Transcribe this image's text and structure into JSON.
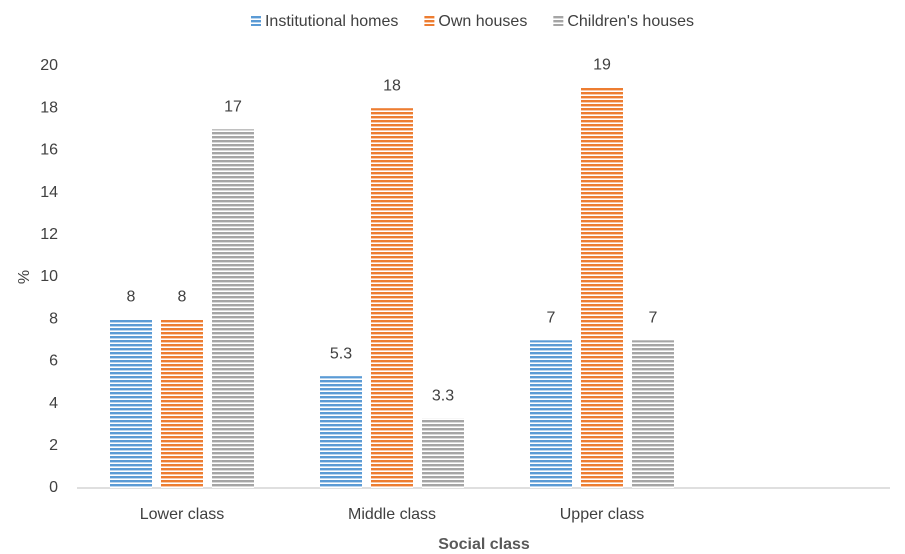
{
  "chart_data": {
    "type": "bar",
    "x_label": "Social class",
    "y_label": "%",
    "categories": [
      "Lower class",
      "Middle class",
      "Upper class"
    ],
    "series": [
      {
        "name": "Institutional homes",
        "color": "#5b9bd5",
        "values": [
          8,
          5.3,
          7
        ]
      },
      {
        "name": "Own houses",
        "color": "#ed7d31",
        "values": [
          8,
          18,
          19
        ]
      },
      {
        "name": "Children's houses",
        "color": "#a5a5a5",
        "values": [
          17,
          3.3,
          7
        ]
      }
    ],
    "ylim": [
      0,
      20
    ],
    "yticks": [
      0,
      2,
      4,
      6,
      8,
      10,
      12,
      14,
      16,
      18,
      20
    ],
    "grid": false,
    "legend": "top"
  }
}
